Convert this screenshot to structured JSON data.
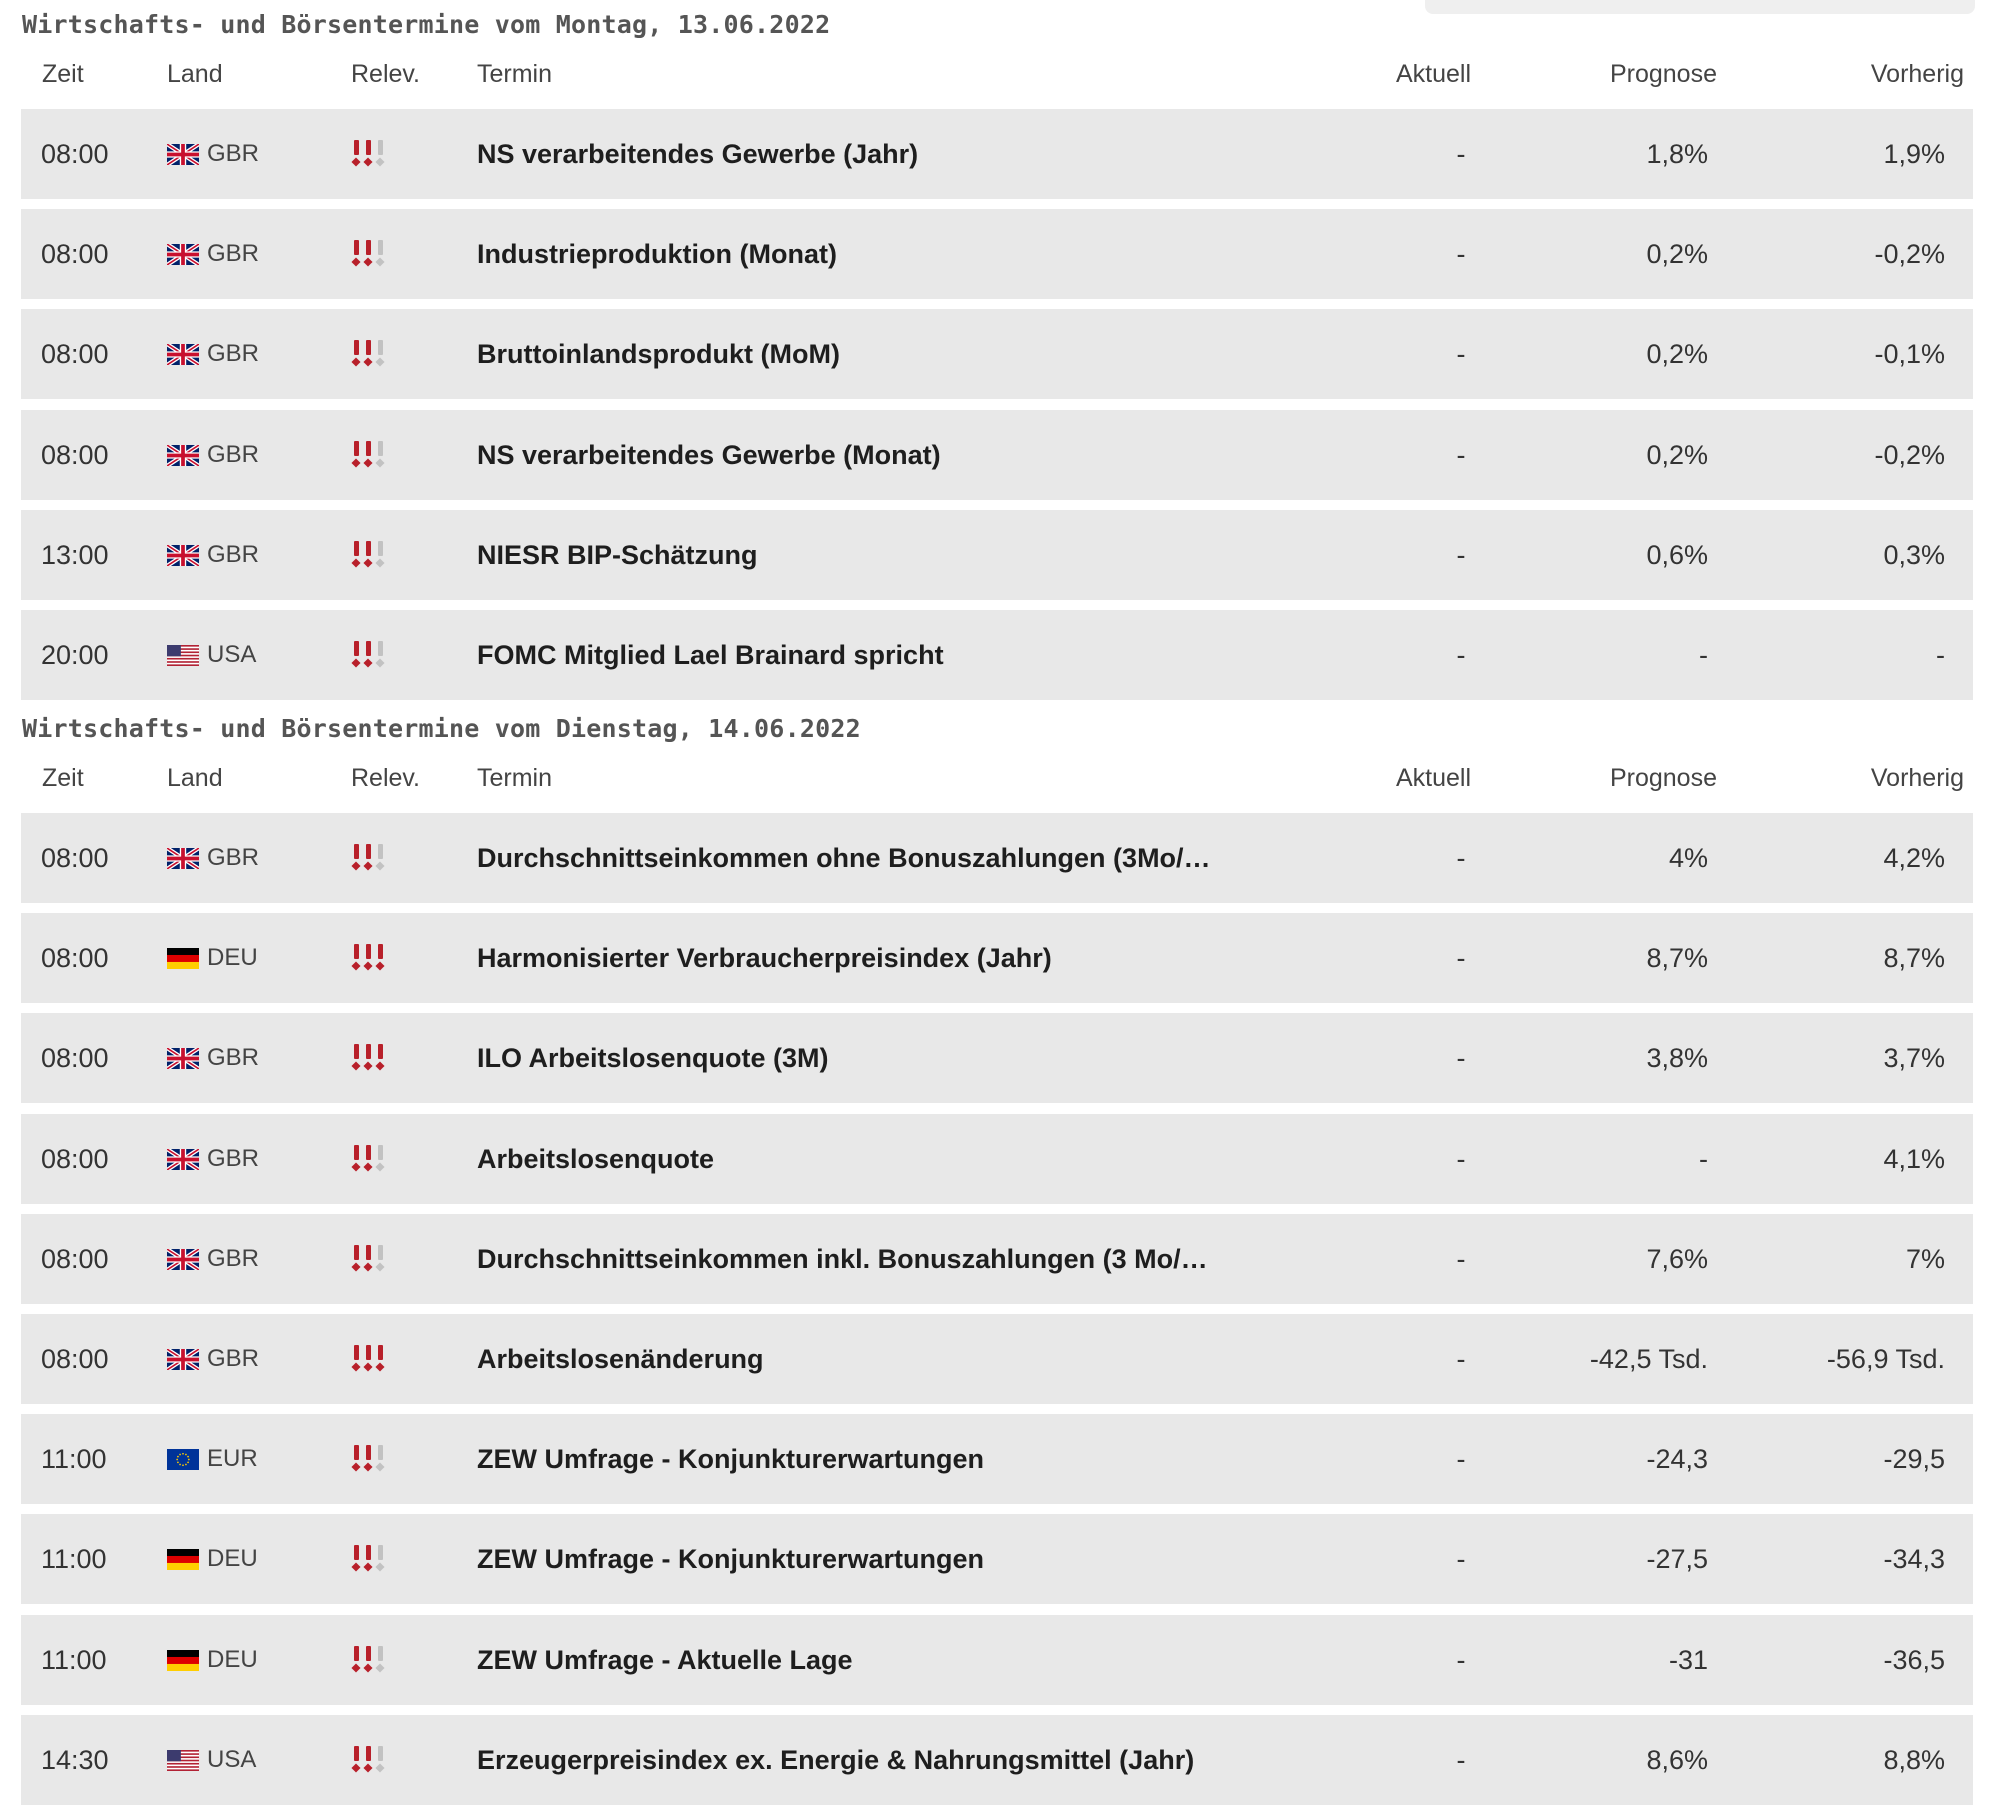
{
  "columns": {
    "zeit": "Zeit",
    "land": "Land",
    "relev": "Relev.",
    "termin": "Termin",
    "aktuell": "Aktuell",
    "prognose": "Prognose",
    "vorherig": "Vorherig"
  },
  "sections": [
    {
      "title": "Wirtschafts- und Börsentermine vom Montag, 13.06.2022",
      "rows": [
        {
          "time": "08:00",
          "flag": "gbr-flag-icon",
          "country": "GBR",
          "relevance": 2,
          "term": "NS verarbeitendes Gewerbe (Jahr)",
          "aktuell": "-",
          "prognose": "1,8%",
          "vorherig": "1,9%"
        },
        {
          "time": "08:00",
          "flag": "gbr-flag-icon",
          "country": "GBR",
          "relevance": 2,
          "term": "Industrieproduktion (Monat)",
          "aktuell": "-",
          "prognose": "0,2%",
          "vorherig": "-0,2%"
        },
        {
          "time": "08:00",
          "flag": "gbr-flag-icon",
          "country": "GBR",
          "relevance": 2,
          "term": "Bruttoinlandsprodukt (MoM)",
          "aktuell": "-",
          "prognose": "0,2%",
          "vorherig": "-0,1%"
        },
        {
          "time": "08:00",
          "flag": "gbr-flag-icon",
          "country": "GBR",
          "relevance": 2,
          "term": "NS verarbeitendes Gewerbe (Monat)",
          "aktuell": "-",
          "prognose": "0,2%",
          "vorherig": "-0,2%"
        },
        {
          "time": "13:00",
          "flag": "gbr-flag-icon",
          "country": "GBR",
          "relevance": 2,
          "term": "NIESR BIP-Schätzung",
          "aktuell": "-",
          "prognose": "0,6%",
          "vorherig": "0,3%"
        },
        {
          "time": "20:00",
          "flag": "usa-flag-icon",
          "country": "USA",
          "relevance": 2,
          "term": "FOMC Mitglied Lael Brainard spricht",
          "aktuell": "-",
          "prognose": "-",
          "vorherig": "-"
        }
      ]
    },
    {
      "title": "Wirtschafts- und Börsentermine vom Dienstag, 14.06.2022",
      "rows": [
        {
          "time": "08:00",
          "flag": "gbr-flag-icon",
          "country": "GBR",
          "relevance": 2,
          "term": "Durchschnittseinkommen ohne Bonuszahlungen (3Mo/…",
          "aktuell": "-",
          "prognose": "4%",
          "vorherig": "4,2%"
        },
        {
          "time": "08:00",
          "flag": "deu-flag-icon",
          "country": "DEU",
          "relevance": 3,
          "term": "Harmonisierter Verbraucherpreisindex (Jahr)",
          "aktuell": "-",
          "prognose": "8,7%",
          "vorherig": "8,7%"
        },
        {
          "time": "08:00",
          "flag": "gbr-flag-icon",
          "country": "GBR",
          "relevance": 3,
          "term": "ILO Arbeitslosenquote (3M)",
          "aktuell": "-",
          "prognose": "3,8%",
          "vorherig": "3,7%"
        },
        {
          "time": "08:00",
          "flag": "gbr-flag-icon",
          "country": "GBR",
          "relevance": 2,
          "term": "Arbeitslosenquote",
          "aktuell": "-",
          "prognose": "-",
          "vorherig": "4,1%"
        },
        {
          "time": "08:00",
          "flag": "gbr-flag-icon",
          "country": "GBR",
          "relevance": 2,
          "term": "Durchschnittseinkommen inkl. Bonuszahlungen (3 Mo/…",
          "aktuell": "-",
          "prognose": "7,6%",
          "vorherig": "7%"
        },
        {
          "time": "08:00",
          "flag": "gbr-flag-icon",
          "country": "GBR",
          "relevance": 3,
          "term": "Arbeitslosenänderung",
          "aktuell": "-",
          "prognose": "-42,5 Tsd.",
          "vorherig": "-56,9 Tsd."
        },
        {
          "time": "11:00",
          "flag": "eur-flag-icon",
          "country": "EUR",
          "relevance": 2,
          "term": "ZEW Umfrage - Konjunkturerwartungen",
          "aktuell": "-",
          "prognose": "-24,3",
          "vorherig": "-29,5"
        },
        {
          "time": "11:00",
          "flag": "deu-flag-icon",
          "country": "DEU",
          "relevance": 2,
          "term": "ZEW Umfrage - Konjunkturerwartungen",
          "aktuell": "-",
          "prognose": "-27,5",
          "vorherig": "-34,3"
        },
        {
          "time": "11:00",
          "flag": "deu-flag-icon",
          "country": "DEU",
          "relevance": 2,
          "term": "ZEW Umfrage - Aktuelle Lage",
          "aktuell": "-",
          "prognose": "-31",
          "vorherig": "-36,5"
        },
        {
          "time": "14:30",
          "flag": "usa-flag-icon",
          "country": "USA",
          "relevance": 2,
          "term": "Erzeugerpreisindex ex. Energie & Nahrungsmittel (Jahr)",
          "aktuell": "-",
          "prognose": "8,6%",
          "vorherig": "8,8%"
        }
      ]
    }
  ]
}
